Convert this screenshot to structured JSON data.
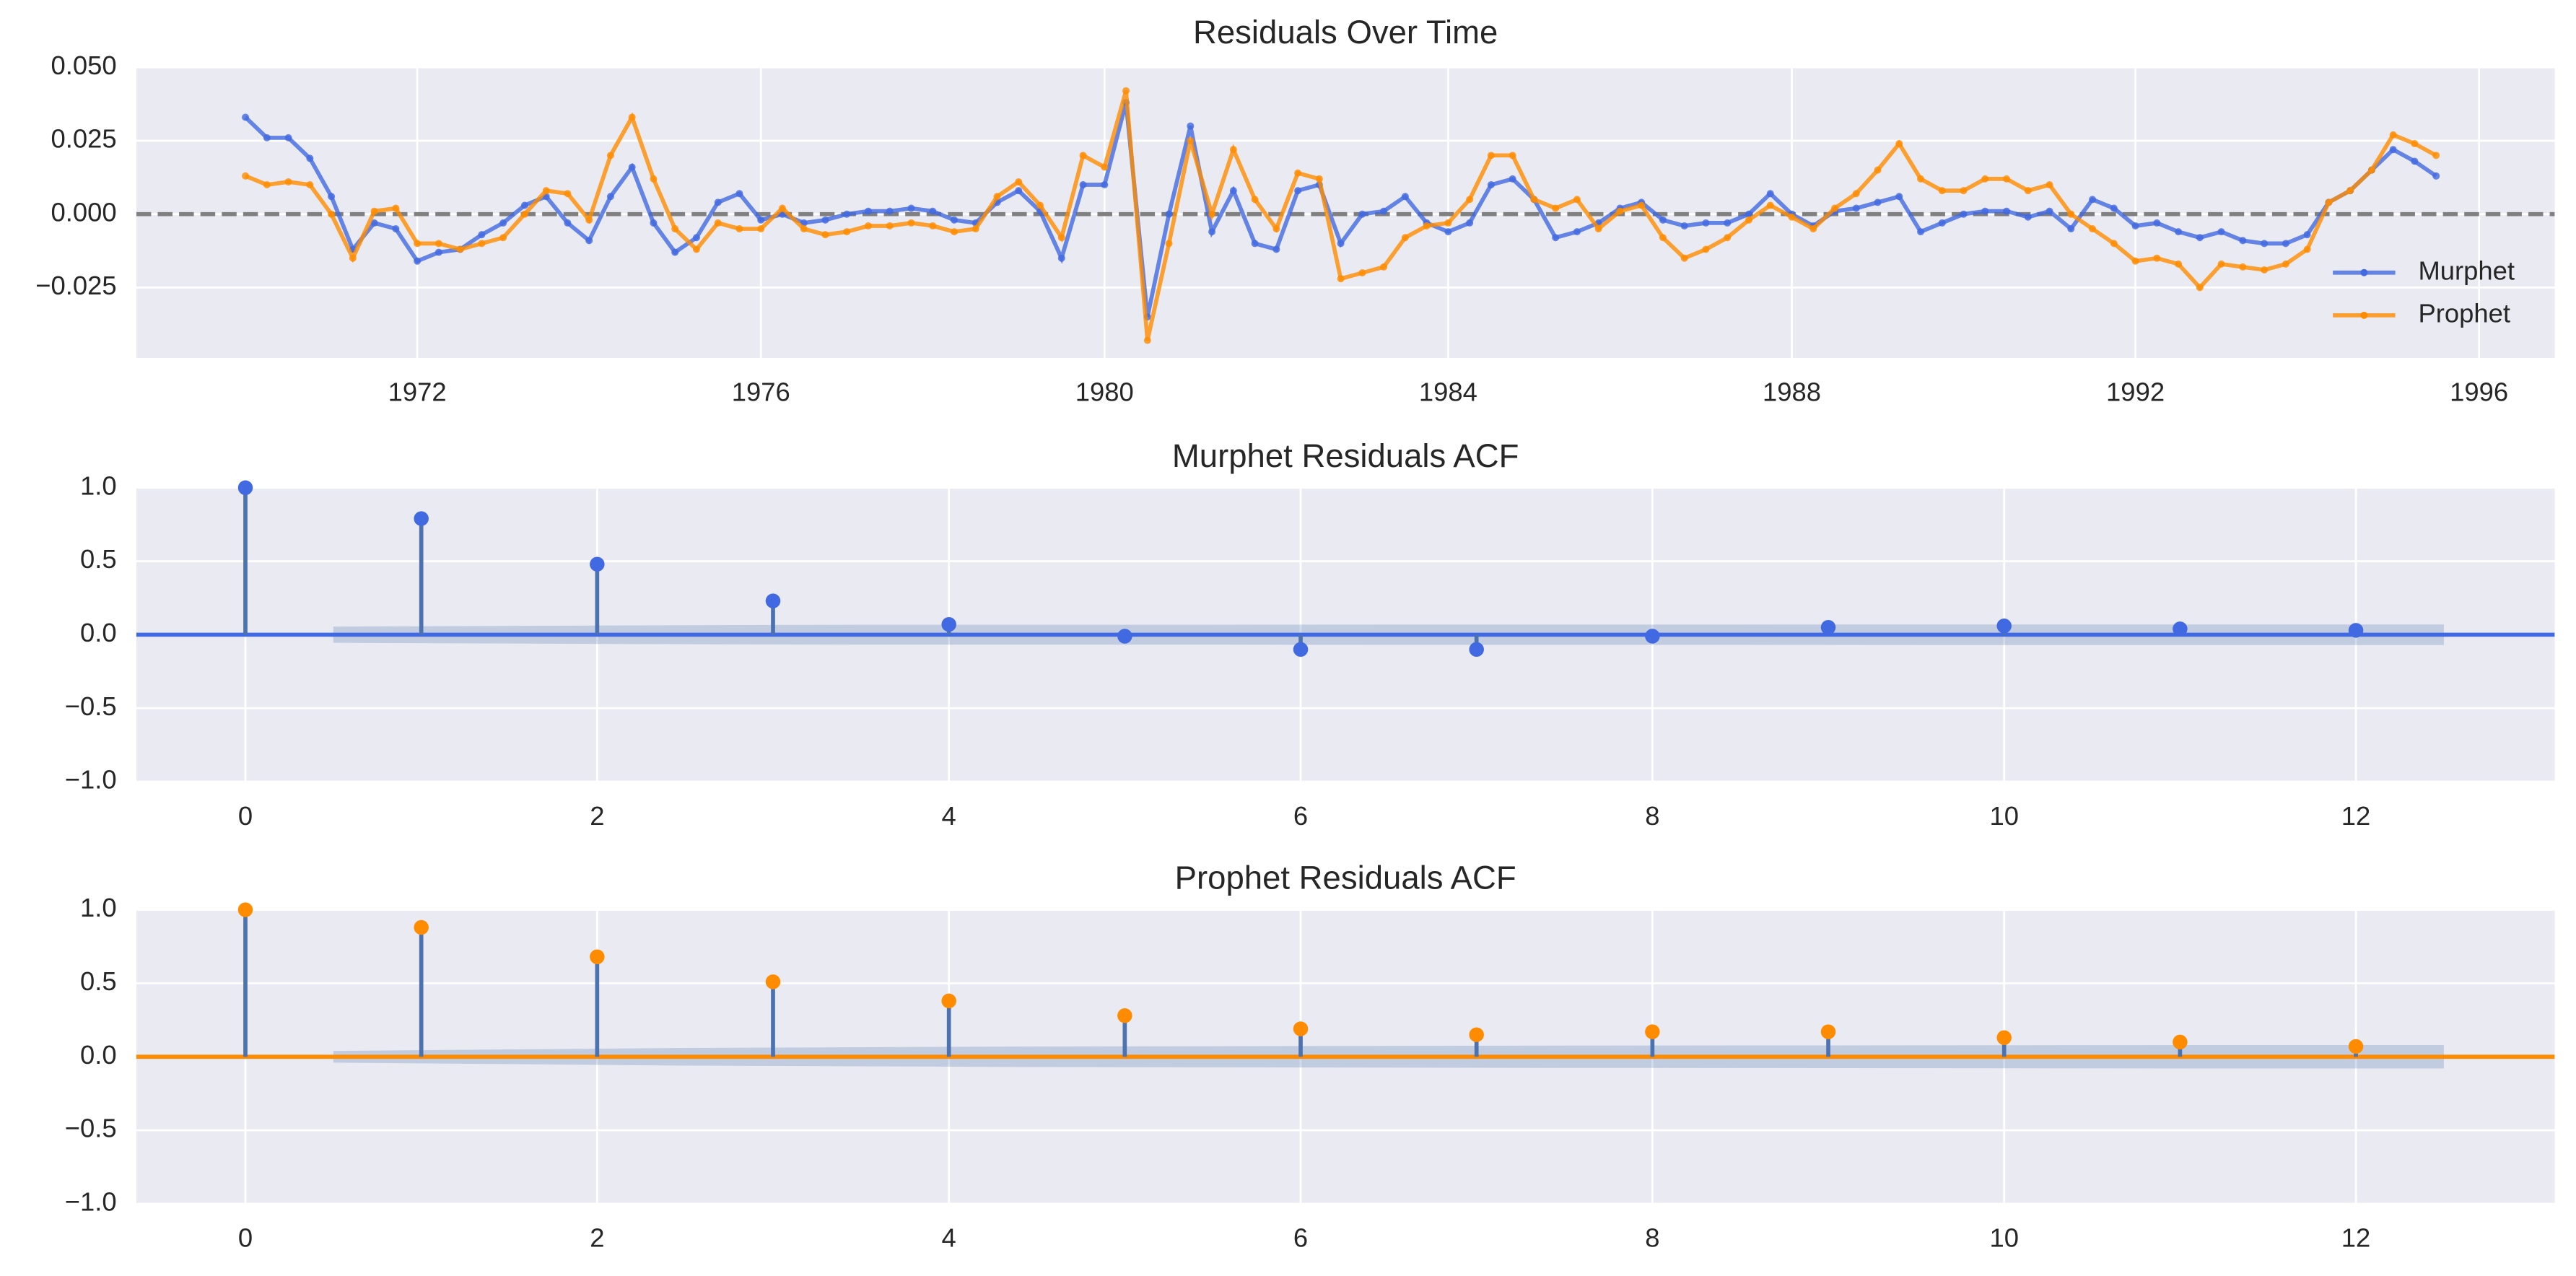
{
  "chart_data": [
    {
      "type": "line",
      "title": "Residuals Over Time",
      "x": [
        1970,
        1970.25,
        1970.5,
        1970.75,
        1971,
        1971.25,
        1971.5,
        1971.75,
        1972,
        1972.25,
        1972.5,
        1972.75,
        1973,
        1973.25,
        1973.5,
        1973.75,
        1974,
        1974.25,
        1974.5,
        1974.75,
        1975,
        1975.25,
        1975.5,
        1975.75,
        1976,
        1976.25,
        1976.5,
        1976.75,
        1977,
        1977.25,
        1977.5,
        1977.75,
        1978,
        1978.25,
        1978.5,
        1978.75,
        1979,
        1979.25,
        1979.5,
        1979.75,
        1980,
        1980.25,
        1980.5,
        1980.75,
        1981,
        1981.25,
        1981.5,
        1981.75,
        1982,
        1982.25,
        1982.5,
        1982.75,
        1983,
        1983.25,
        1983.5,
        1983.75,
        1984,
        1984.25,
        1984.5,
        1984.75,
        1985,
        1985.25,
        1985.5,
        1985.75,
        1986,
        1986.25,
        1986.5,
        1986.75,
        1987,
        1987.25,
        1987.5,
        1987.75,
        1988,
        1988.25,
        1988.5,
        1988.75,
        1989,
        1989.25,
        1989.5,
        1989.75,
        1990,
        1990.25,
        1990.5,
        1990.75,
        1991,
        1991.25,
        1991.5,
        1991.75,
        1992,
        1992.25,
        1992.5,
        1992.75,
        1993,
        1993.25,
        1993.5,
        1993.75,
        1994,
        1994.25,
        1994.5,
        1994.75,
        1995,
        1995.25,
        1995.5
      ],
      "xlim": [
        1968.73,
        1996.88
      ],
      "xticks": [
        1972,
        1976,
        1980,
        1984,
        1988,
        1992,
        1996
      ],
      "ylim": [
        -0.049,
        0.05
      ],
      "yticks": [
        {
          "value": 0.05,
          "label": "0.050"
        },
        {
          "value": 0.025,
          "label": "0.025"
        },
        {
          "value": 0,
          "label": "0.000"
        },
        {
          "value": -0.025,
          "label": "−0.025"
        }
      ],
      "hline": 0,
      "grid": true,
      "legend": "lower right",
      "series": [
        {
          "name": "Murphet",
          "color": "#4169e1",
          "values": [
            0.033,
            0.026,
            0.026,
            0.019,
            0.006,
            -0.012,
            -0.003,
            -0.005,
            -0.016,
            -0.013,
            -0.012,
            -0.007,
            -0.003,
            0.003,
            0.006,
            -0.003,
            -0.009,
            0.006,
            0.016,
            -0.003,
            -0.013,
            -0.008,
            0.004,
            0.007,
            -0.002,
            0.0,
            -0.003,
            -0.002,
            0.0,
            0.001,
            0.001,
            0.002,
            0.001,
            -0.002,
            -0.003,
            0.004,
            0.008,
            0.001,
            -0.015,
            0.01,
            0.01,
            0.038,
            -0.035,
            0.0,
            0.03,
            -0.006,
            0.008,
            -0.01,
            -0.012,
            0.008,
            0.01,
            -0.01,
            0.0,
            0.001,
            0.006,
            -0.003,
            -0.006,
            -0.003,
            0.01,
            0.012,
            0.005,
            -0.008,
            -0.006,
            -0.003,
            0.002,
            0.004,
            -0.002,
            -0.004,
            -0.003,
            -0.003,
            0.0,
            0.007,
            0.0,
            -0.004,
            0.001,
            0.002,
            0.004,
            0.006,
            -0.006,
            -0.003,
            0.0,
            0.001,
            0.001,
            -0.001,
            0.001,
            -0.005,
            0.005,
            0.002,
            -0.004,
            -0.003,
            -0.006,
            -0.008,
            -0.006,
            -0.009,
            -0.01,
            -0.01,
            -0.007,
            0.004,
            0.008,
            0.015,
            0.022,
            0.018,
            0.013
          ]
        },
        {
          "name": "Prophet",
          "color": "#ff8c00",
          "values": [
            0.013,
            0.01,
            0.011,
            0.01,
            0.0,
            -0.015,
            0.001,
            0.002,
            -0.01,
            -0.01,
            -0.012,
            -0.01,
            -0.008,
            0.0,
            0.008,
            0.007,
            -0.002,
            0.02,
            0.033,
            0.012,
            -0.005,
            -0.012,
            -0.003,
            -0.005,
            -0.005,
            0.002,
            -0.005,
            -0.007,
            -0.006,
            -0.004,
            -0.004,
            -0.003,
            -0.004,
            -0.006,
            -0.005,
            0.006,
            0.011,
            0.003,
            -0.008,
            0.02,
            0.016,
            0.042,
            -0.043,
            -0.01,
            0.025,
            0.0,
            0.022,
            0.005,
            -0.005,
            0.014,
            0.012,
            -0.022,
            -0.02,
            -0.018,
            -0.008,
            -0.004,
            -0.003,
            0.005,
            0.02,
            0.02,
            0.005,
            0.002,
            0.005,
            -0.005,
            0.001,
            0.003,
            -0.008,
            -0.015,
            -0.012,
            -0.008,
            -0.002,
            0.003,
            -0.001,
            -0.005,
            0.002,
            0.007,
            0.015,
            0.024,
            0.012,
            0.008,
            0.008,
            0.012,
            0.012,
            0.008,
            0.01,
            0.0,
            -0.005,
            -0.01,
            -0.016,
            -0.015,
            -0.017,
            -0.025,
            -0.017,
            -0.018,
            -0.019,
            -0.017,
            -0.012,
            0.004,
            0.008,
            0.015,
            0.027,
            0.024,
            0.02
          ]
        }
      ]
    },
    {
      "type": "stem",
      "title": "Murphet Residuals ACF",
      "x": [
        0,
        1,
        2,
        3,
        4,
        5,
        6,
        7,
        8,
        9,
        10,
        11,
        12
      ],
      "xlim": [
        -0.62,
        13.13
      ],
      "xticks": [
        0,
        2,
        4,
        6,
        8,
        10,
        12
      ],
      "ylim": [
        -1,
        1
      ],
      "yticks": [
        {
          "value": 1,
          "label": "1.0"
        },
        {
          "value": 0.5,
          "label": "0.5"
        },
        {
          "value": 0,
          "label": "0.0"
        },
        {
          "value": -0.5,
          "label": "−0.5"
        },
        {
          "value": -1,
          "label": "−1.0"
        }
      ],
      "grid": true,
      "color": "#4169e1",
      "stem_color": "#4c72b0",
      "values": [
        1.0,
        0.79,
        0.48,
        0.23,
        0.07,
        -0.01,
        -0.1,
        -0.1,
        -0.01,
        0.05,
        0.06,
        0.04,
        0.03
      ],
      "confint": [
        null,
        0.055,
        0.06,
        0.065,
        0.068,
        0.068,
        0.068,
        0.069,
        0.069,
        0.069,
        0.07,
        0.07,
        0.07
      ]
    },
    {
      "type": "stem",
      "title": "Prophet Residuals ACF",
      "x": [
        0,
        1,
        2,
        3,
        4,
        5,
        6,
        7,
        8,
        9,
        10,
        11,
        12
      ],
      "xlim": [
        -0.62,
        13.13
      ],
      "xticks": [
        0,
        2,
        4,
        6,
        8,
        10,
        12
      ],
      "ylim": [
        -1,
        1
      ],
      "yticks": [
        {
          "value": 1,
          "label": "1.0"
        },
        {
          "value": 0.5,
          "label": "0.5"
        },
        {
          "value": 0,
          "label": "0.0"
        },
        {
          "value": -0.5,
          "label": "−0.5"
        },
        {
          "value": -1,
          "label": "−1.0"
        }
      ],
      "grid": true,
      "color": "#ff8c00",
      "stem_color": "#4c72b0",
      "values": [
        1.0,
        0.88,
        0.68,
        0.51,
        0.38,
        0.28,
        0.19,
        0.15,
        0.17,
        0.17,
        0.13,
        0.1,
        0.07
      ],
      "confint": [
        null,
        0.04,
        0.05,
        0.06,
        0.065,
        0.07,
        0.072,
        0.074,
        0.076,
        0.077,
        0.078,
        0.079,
        0.08
      ]
    }
  ]
}
